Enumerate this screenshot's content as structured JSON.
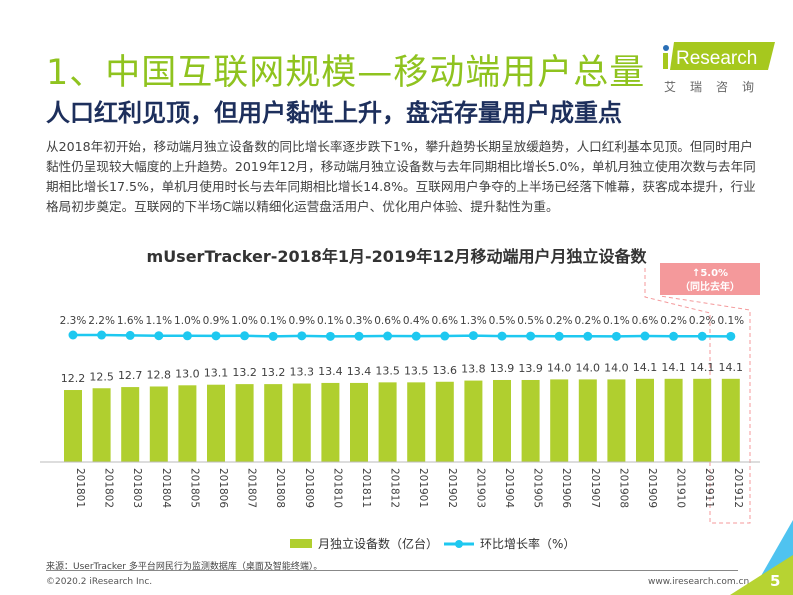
{
  "header": {
    "title": "1、中国互联网规模—移动端用户总量",
    "subtitle": "人口红利见顶，但用户黏性上升，盘活存量用户成重点",
    "logo_text": "iResearch",
    "logo_sub": "艾瑞咨询"
  },
  "body_text": "从2018年初开始，移动端月独立设备数的同比增长率逐步跌下1%，攀升趋势长期呈放缓趋势，人口红利基本见顶。但同时用户黏性仍呈现较大幅度的上升趋势。2019年12月，移动端月独立设备数与去年同期相比增长5.0%，单机月独立使用次数与去年同期相比增长17.5%，单机月使用时长与去年同期相比增长14.8%。互联网用户争夺的上半场已经落下帷幕，获客成本提升，行业格局初步奠定。互联网的下半场C端以精细化运营盘活用户、优化用户体验、提升黏性为重。",
  "colors": {
    "bar": "#b0cf2f",
    "line": "#1ec8f0",
    "title": "#8fc31f",
    "callout": "#f4999b"
  },
  "callout": {
    "value": "↑5.0%",
    "label": "（同比去年）"
  },
  "chart_data": {
    "type": "bar+line",
    "title": "mUserTracker-2018年1月-2019年12月移动端用户月独立设备数",
    "categories": [
      "201801",
      "201802",
      "201803",
      "201804",
      "201805",
      "201806",
      "201807",
      "201808",
      "201809",
      "201810",
      "201811",
      "201812",
      "201901",
      "201902",
      "201903",
      "201904",
      "201905",
      "201906",
      "201907",
      "201908",
      "201909",
      "201910",
      "201911",
      "201912"
    ],
    "series": [
      {
        "name": "月独立设备数（亿台）",
        "type": "bar",
        "values": [
          12.2,
          12.5,
          12.7,
          12.8,
          13.0,
          13.1,
          13.2,
          13.2,
          13.3,
          13.4,
          13.4,
          13.5,
          13.5,
          13.6,
          13.8,
          13.9,
          13.9,
          14.0,
          14.0,
          14.0,
          14.1,
          14.1,
          14.1,
          14.1
        ]
      },
      {
        "name": "环比增长率（%）",
        "type": "line",
        "labels": [
          "2.3%",
          "2.2%",
          "1.6%",
          "1.1%",
          "1.0%",
          "0.9%",
          "1.0%",
          "0.1%",
          "0.9%",
          "0.1%",
          "0.3%",
          "0.6%",
          "0.4%",
          "0.6%",
          "1.3%",
          "0.5%",
          "0.5%",
          "0.2%",
          "0.2%",
          "0.1%",
          "0.6%",
          "0.2%",
          "0.2%",
          "0.1%"
        ],
        "values": [
          2.3,
          2.2,
          1.6,
          1.1,
          1.0,
          0.9,
          1.0,
          0.1,
          0.9,
          0.1,
          0.3,
          0.6,
          0.4,
          0.6,
          1.3,
          0.5,
          0.5,
          0.2,
          0.2,
          0.1,
          0.6,
          0.2,
          0.2,
          0.1
        ]
      }
    ],
    "legend": "bottom"
  },
  "footer": {
    "source": "来源：UserTracker 多平台网民行为监测数据库（桌面及智能终端）。",
    "copyright": "©2020.2 iResearch Inc.",
    "url": "www.iresearch.com.cn",
    "page": "5"
  }
}
